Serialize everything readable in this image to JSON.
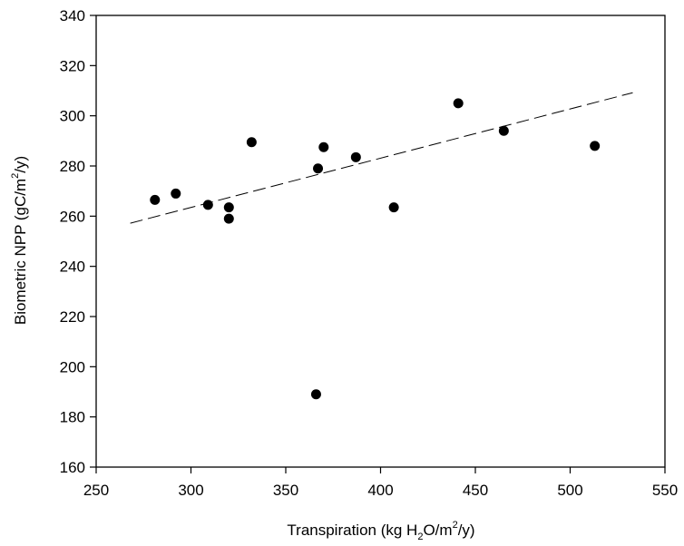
{
  "chart_data": {
    "type": "scatter",
    "title": "",
    "xlabel": {
      "prefix": "Transpiration (kg H",
      "sub": "2",
      "mid": "O/m",
      "sup": "2",
      "suffix": "/y)"
    },
    "ylabel": {
      "prefix": "Biometric NPP (gC/m",
      "sup": "2",
      "suffix": "/y)"
    },
    "xlim": [
      250,
      550
    ],
    "ylim": [
      160,
      340
    ],
    "xticks": [
      250,
      300,
      350,
      400,
      450,
      500,
      550
    ],
    "yticks": [
      160,
      180,
      200,
      220,
      240,
      260,
      280,
      300,
      320,
      340
    ],
    "grid": false,
    "legend": "none",
    "points": [
      {
        "x": 281,
        "y": 266.5
      },
      {
        "x": 292,
        "y": 269
      },
      {
        "x": 309,
        "y": 264.5
      },
      {
        "x": 320,
        "y": 263.5
      },
      {
        "x": 320,
        "y": 259
      },
      {
        "x": 332,
        "y": 289.5
      },
      {
        "x": 366,
        "y": 189
      },
      {
        "x": 367,
        "y": 279
      },
      {
        "x": 370,
        "y": 287.5
      },
      {
        "x": 387,
        "y": 283.5
      },
      {
        "x": 407,
        "y": 263.5
      },
      {
        "x": 441,
        "y": 305
      },
      {
        "x": 465,
        "y": 294
      },
      {
        "x": 513,
        "y": 288
      }
    ],
    "fit_line": {
      "style": "dashed",
      "x": [
        268,
        533
      ],
      "y": [
        257.2,
        309.2
      ]
    },
    "colors": {
      "marker": "#000000",
      "line": "#000000",
      "axis": "#000000"
    }
  }
}
